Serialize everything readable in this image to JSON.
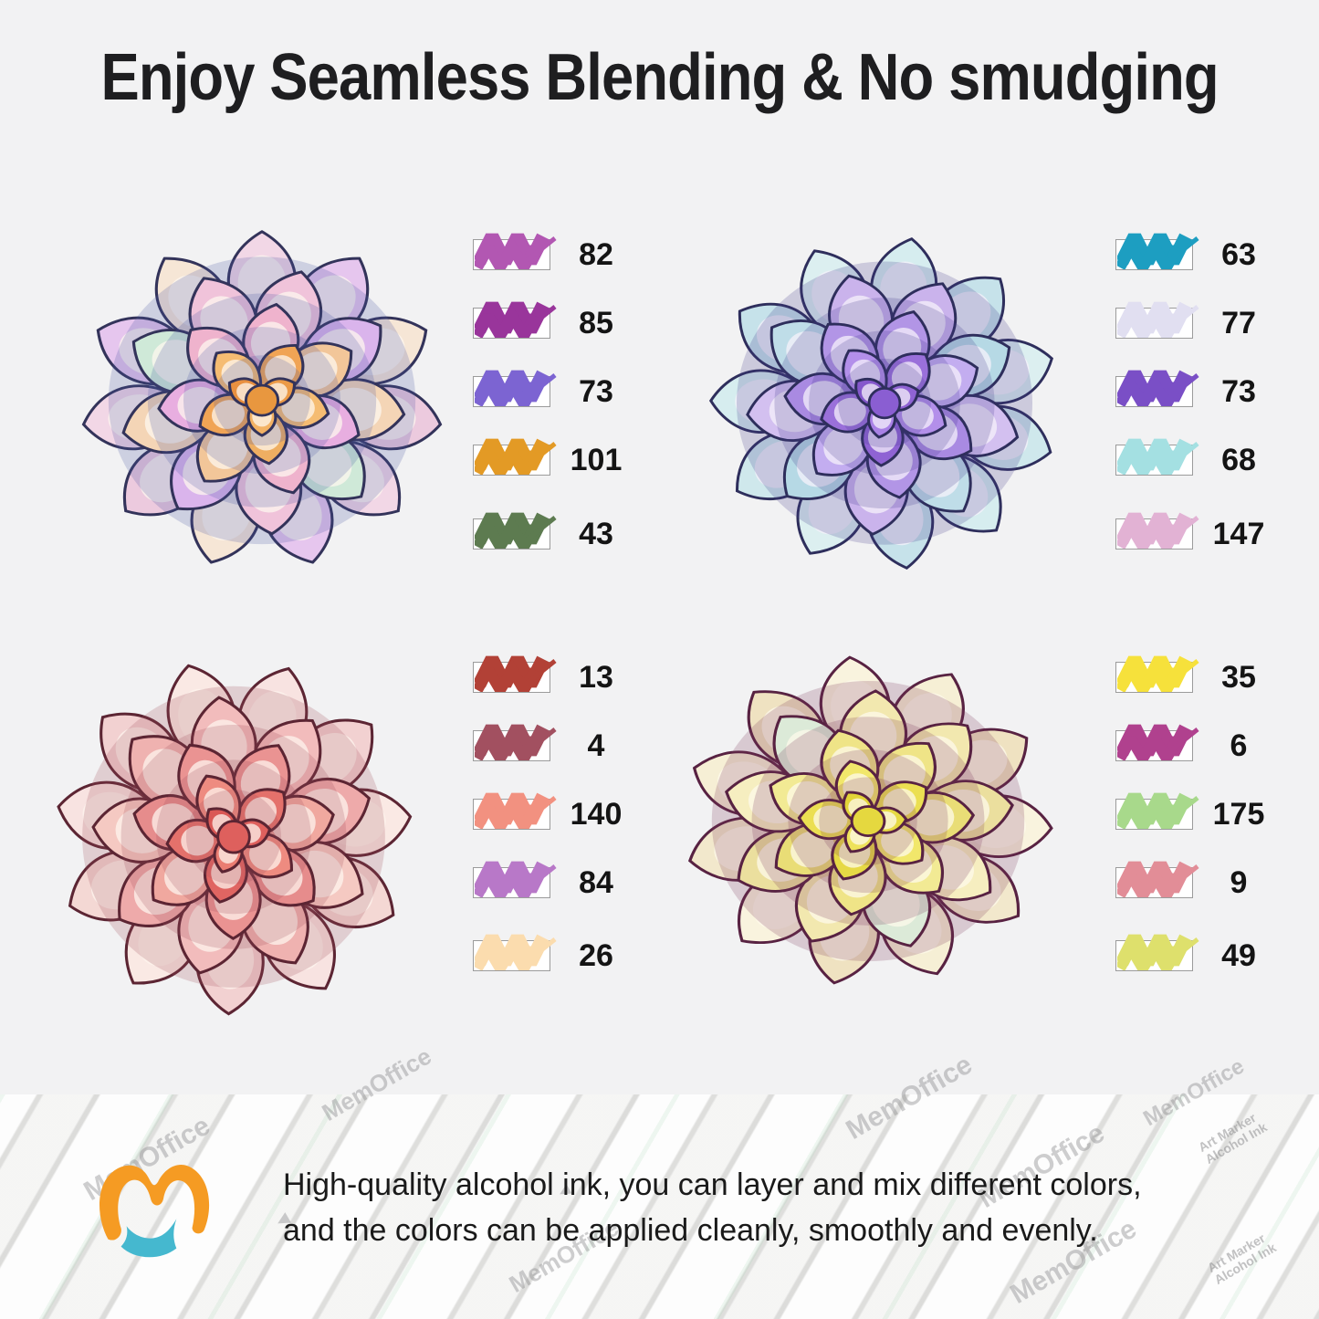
{
  "title": "Enjoy Seamless Blending & No smudging",
  "swatch_groups": [
    {
      "name": "top-left",
      "swatches": [
        {
          "num": "82",
          "color": "#b257b2"
        },
        {
          "num": "85",
          "color": "#99359b"
        },
        {
          "num": "73",
          "color": "#7c64d2"
        },
        {
          "num": "101",
          "color": "#e39a25"
        },
        {
          "num": "43",
          "color": "#5d7b50"
        }
      ]
    },
    {
      "name": "top-right",
      "swatches": [
        {
          "num": "63",
          "color": "#1d9ec1"
        },
        {
          "num": "77",
          "color": "#e1dff1"
        },
        {
          "num": "73",
          "color": "#7a4fc6"
        },
        {
          "num": "68",
          "color": "#a4e0e2"
        },
        {
          "num": "147",
          "color": "#e2b2d4"
        }
      ]
    },
    {
      "name": "bottom-left",
      "swatches": [
        {
          "num": "13",
          "color": "#b24136"
        },
        {
          "num": "4",
          "color": "#a25060"
        },
        {
          "num": "140",
          "color": "#f29180"
        },
        {
          "num": "84",
          "color": "#b878c8"
        },
        {
          "num": "26",
          "color": "#fbdcae"
        }
      ]
    },
    {
      "name": "bottom-right",
      "swatches": [
        {
          "num": "35",
          "color": "#f6e13b"
        },
        {
          "num": "6",
          "color": "#b0418e"
        },
        {
          "num": "175",
          "color": "#a8d98b"
        },
        {
          "num": "9",
          "color": "#e28d97"
        },
        {
          "num": "49",
          "color": "#dee06c"
        }
      ]
    }
  ],
  "flowers": [
    {
      "position": "top-left",
      "theme": "peach-purple-orange",
      "palette": {
        "outline": "#33335a",
        "shadow": "#4a55a2",
        "highlight": "#fdf7ef",
        "center": "#e8973f",
        "rings": [
          [
            "#f2d7e6",
            "#e6c6ee",
            "#f6e6d6",
            "#eccade"
          ],
          [
            "#f0c3da",
            "#dab4ec",
            "#f4d5b6",
            "#cfe9d8"
          ],
          [
            "#efb3cd",
            "#f2c699",
            "#e8aee0"
          ],
          [
            "#f0a455",
            "#f5bc72",
            "#eeae62"
          ],
          [
            "#eb9a48",
            "#f3b264",
            "#e89040"
          ]
        ]
      }
    },
    {
      "position": "top-right",
      "theme": "purple-teal",
      "palette": {
        "outline": "#2e2e5c",
        "shadow": "#453a8e",
        "highlight": "#f5f1fb",
        "center": "#8a5ed2",
        "rings": [
          [
            "#d6edef",
            "#c6e2ea",
            "#dceff0",
            "#cfe8ec"
          ],
          [
            "#cab3ec",
            "#b6d9e5",
            "#d3c0f0",
            "#bfdde8"
          ],
          [
            "#b295e6",
            "#c3adf0",
            "#a98ae2"
          ],
          [
            "#9a70da",
            "#b38fea",
            "#8f63d4"
          ],
          [
            "#8f63d4",
            "#a981e6",
            "#8558cc"
          ]
        ]
      }
    },
    {
      "position": "bottom-left",
      "theme": "pink-red",
      "palette": {
        "outline": "#5c2533",
        "shadow": "#a04c5a",
        "highlight": "#fdf4ee",
        "center": "#de605d",
        "rings": [
          [
            "#f8e3e1",
            "#f2d1d1",
            "#fae9e4",
            "#f4d8d4"
          ],
          [
            "#f2bcbc",
            "#eeaaaa",
            "#f5c9c2",
            "#efb2b0"
          ],
          [
            "#ea9392",
            "#f0a89f",
            "#e68c8c"
          ],
          [
            "#e4716b",
            "#ee8b80",
            "#e06562"
          ],
          [
            "#df605d",
            "#ea7d72",
            "#da5855"
          ]
        ]
      }
    },
    {
      "position": "bottom-right",
      "theme": "yellow-plum",
      "palette": {
        "outline": "#582242",
        "shadow": "#7d3659",
        "highlight": "#fdfaeb",
        "center": "#e5d83f",
        "rings": [
          [
            "#f6efd5",
            "#efe2c1",
            "#f9f3de",
            "#f2e8cc"
          ],
          [
            "#f2e8af",
            "#ebdf9e",
            "#f6eec0",
            "#dcead8"
          ],
          [
            "#efe487",
            "#e9dd76",
            "#f2ea94"
          ],
          [
            "#ebdf52",
            "#f1e76b",
            "#e6d945"
          ],
          [
            "#e6d943",
            "#eee25c",
            "#e2d438"
          ]
        ]
      }
    }
  ],
  "footer": {
    "line1": "High-quality alcohol ink, you can layer and mix different colors,",
    "line2": "and the colors can be applied cleanly, smoothly and evenly.",
    "logo": {
      "m_color": "#f59b23",
      "wave_color": "#45b8cf"
    },
    "watermark_text": "MemOffice",
    "watermark_small_line1": "Art Marker",
    "watermark_small_line2": "Alcohol Ink",
    "watermark_arrow": "◄"
  }
}
